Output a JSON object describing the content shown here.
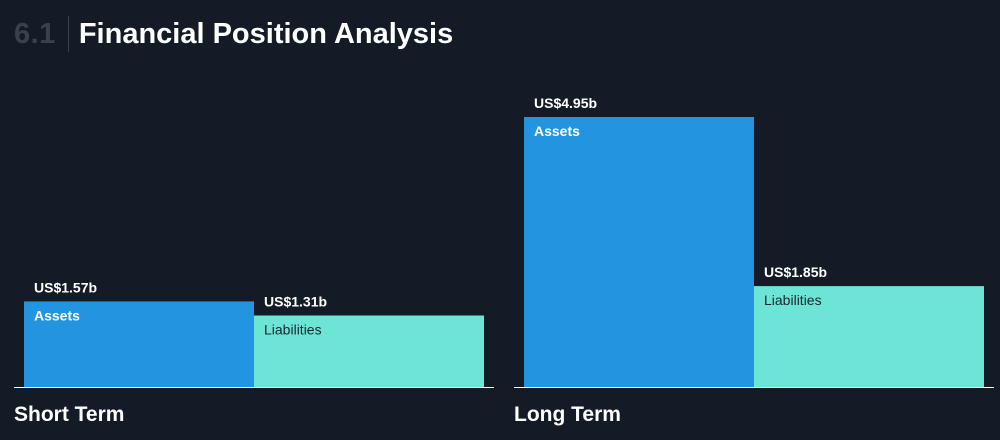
{
  "header": {
    "section_number": "6.1",
    "title": "Financial Position Analysis"
  },
  "colors": {
    "background": "#151b26",
    "assets": "#2394df",
    "liabilities": "#6ce5d6",
    "baseline": "#ffffff"
  },
  "chart_data": {
    "type": "bar",
    "title": "Financial Position Analysis",
    "unit": "US$ billions",
    "categories": [
      "Short Term",
      "Long Term"
    ],
    "series": [
      {
        "name": "Assets",
        "values": [
          1.57,
          4.95
        ],
        "labels": [
          "US$1.57b",
          "US$4.95b"
        ]
      },
      {
        "name": "Liabilities",
        "values": [
          1.31,
          1.85
        ],
        "labels": [
          "US$1.31b",
          "US$1.85b"
        ]
      }
    ],
    "ylim": [
      0,
      4.95
    ],
    "grid": false,
    "legend": "none"
  }
}
